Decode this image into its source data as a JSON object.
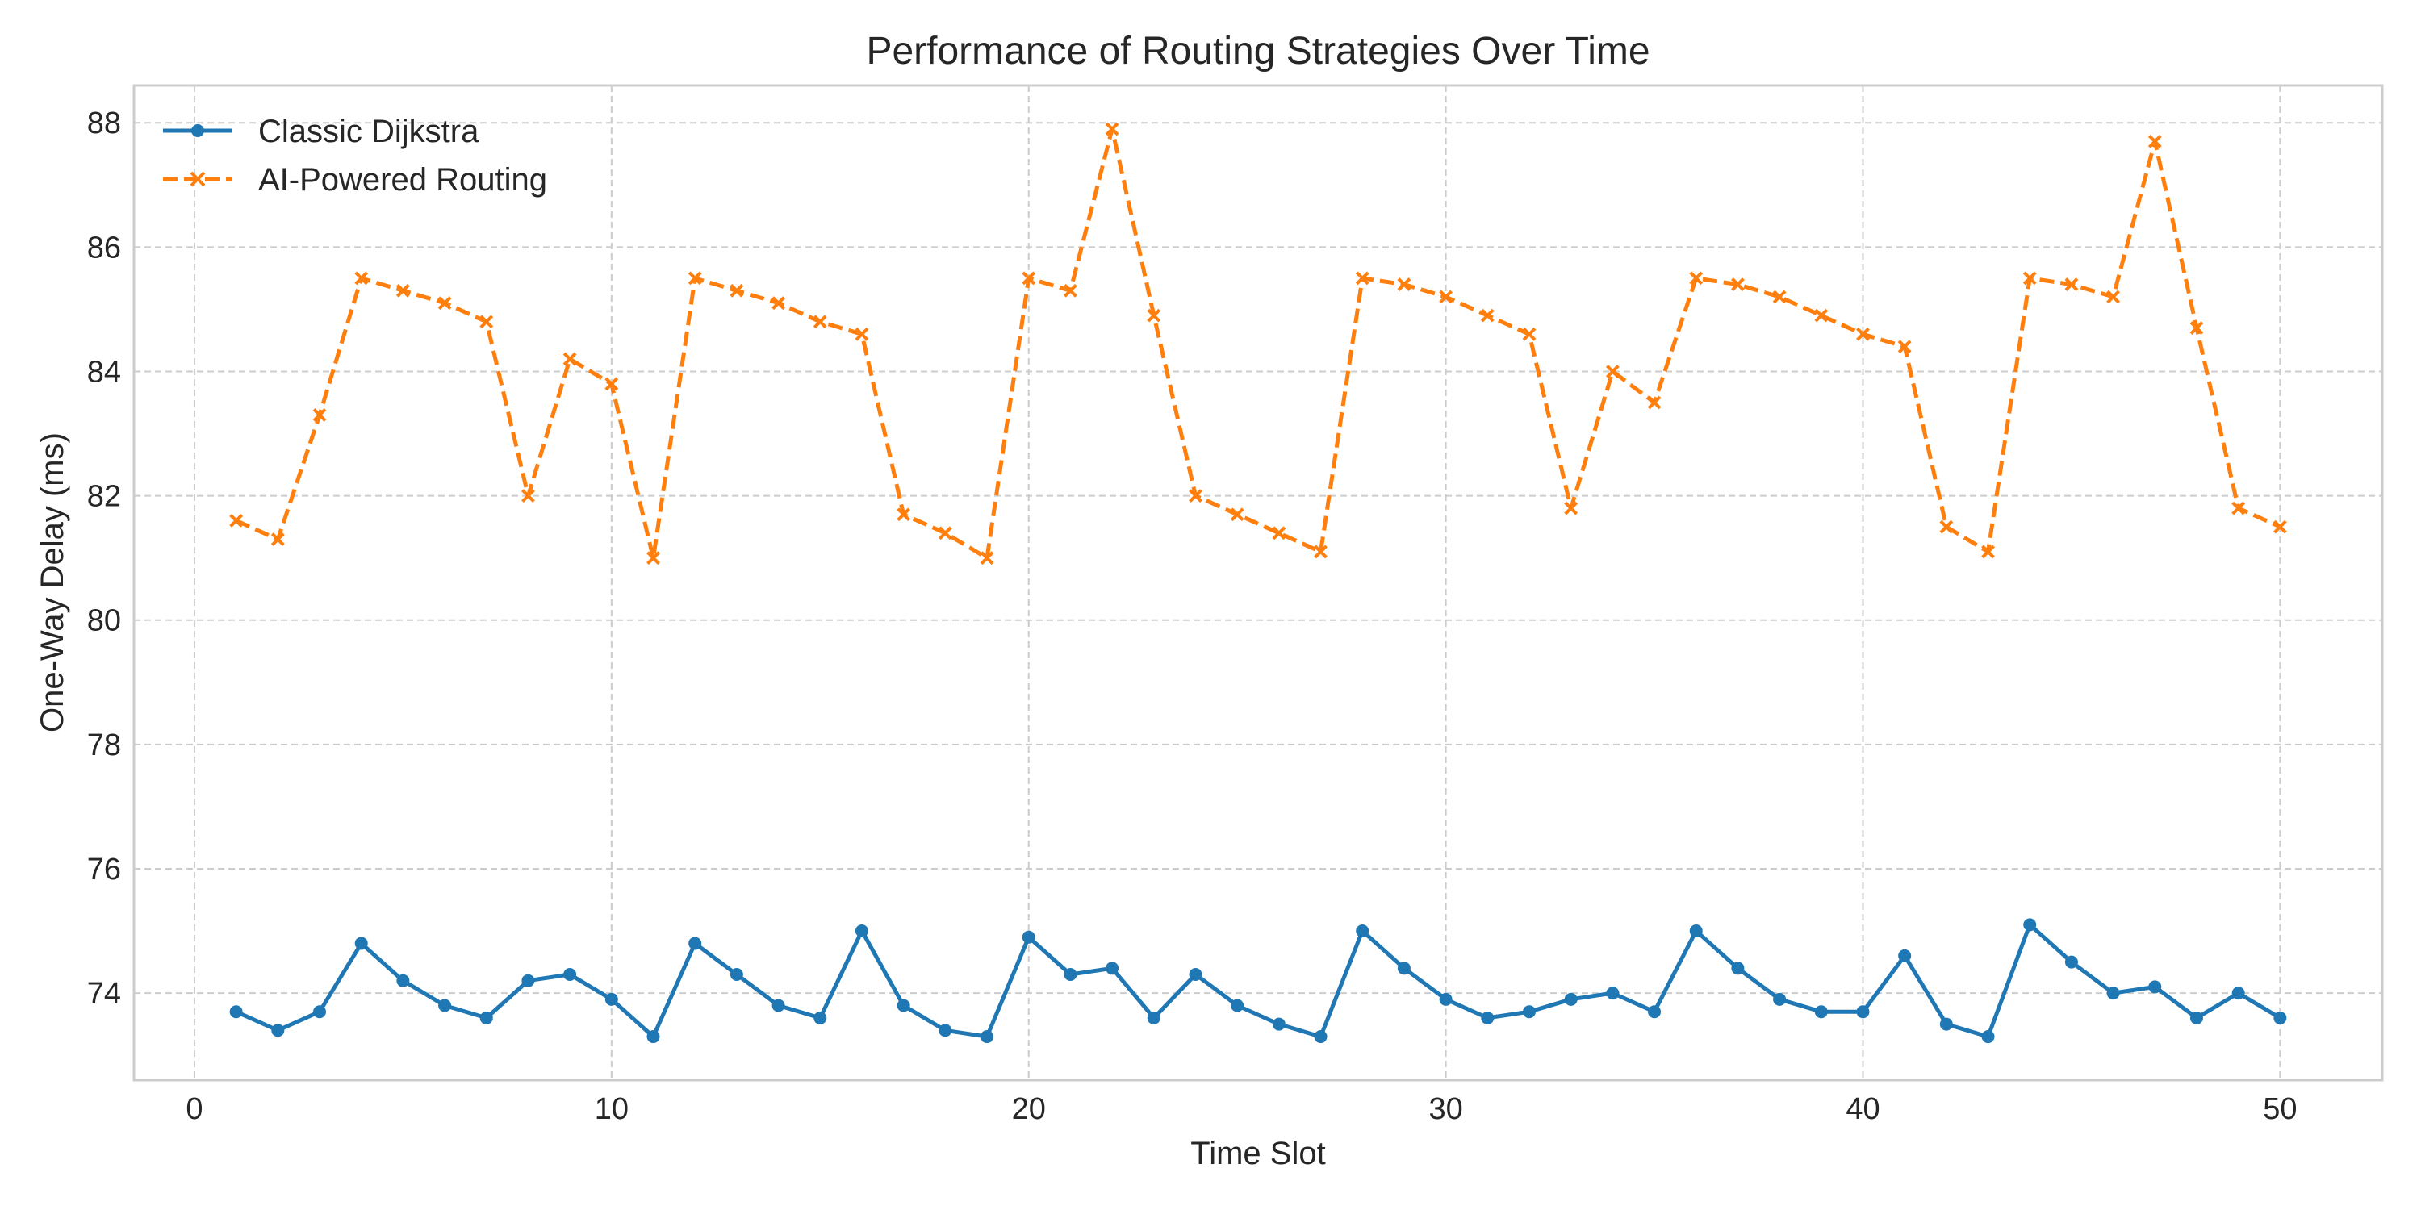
{
  "chart_data": {
    "type": "line",
    "title": "Performance of Routing Strategies Over Time",
    "xlabel": "Time Slot",
    "ylabel": "One-Way Delay (ms)",
    "xlim": [
      -1.45,
      52.45
    ],
    "ylim": [
      72.6,
      88.6
    ],
    "xticks": [
      0,
      10,
      20,
      30,
      40,
      50
    ],
    "yticks": [
      74,
      76,
      78,
      80,
      82,
      84,
      86,
      88
    ],
    "grid": true,
    "legend_position": "top-left",
    "x": [
      1,
      2,
      3,
      4,
      5,
      6,
      7,
      8,
      9,
      10,
      11,
      12,
      13,
      14,
      15,
      16,
      17,
      18,
      19,
      20,
      21,
      22,
      23,
      24,
      25,
      26,
      27,
      28,
      29,
      30,
      31,
      32,
      33,
      34,
      35,
      36,
      37,
      38,
      39,
      40,
      41,
      42,
      43,
      44,
      45,
      46,
      47,
      48,
      49,
      50
    ],
    "series": [
      {
        "name": "Classic Dijkstra",
        "color": "#1f77b4",
        "style": "solid",
        "marker": "circle",
        "values": [
          73.7,
          73.4,
          73.7,
          74.8,
          74.2,
          73.8,
          73.6,
          74.2,
          74.3,
          73.9,
          73.3,
          74.8,
          74.3,
          73.8,
          73.6,
          75.0,
          73.8,
          73.4,
          73.3,
          74.9,
          74.3,
          74.4,
          73.6,
          74.3,
          73.8,
          73.5,
          73.3,
          75.0,
          74.4,
          73.9,
          73.6,
          73.7,
          73.9,
          74.0,
          73.7,
          75.0,
          74.4,
          73.9,
          73.7,
          73.7,
          74.6,
          73.5,
          73.3,
          75.1,
          74.5,
          74.0,
          74.1,
          73.6,
          74.0,
          73.6
        ]
      },
      {
        "name": "AI-Powered Routing",
        "color": "#ff7f0e",
        "style": "dashed",
        "marker": "x",
        "values": [
          81.6,
          81.3,
          83.3,
          85.5,
          85.3,
          85.1,
          84.8,
          82.0,
          84.2,
          83.8,
          81.0,
          85.5,
          85.3,
          85.1,
          84.8,
          84.6,
          81.7,
          81.4,
          81.0,
          85.5,
          85.3,
          87.9,
          84.9,
          82.0,
          81.7,
          81.4,
          81.1,
          85.5,
          85.4,
          85.2,
          84.9,
          84.6,
          81.8,
          84.0,
          83.5,
          85.5,
          85.4,
          85.2,
          84.9,
          84.6,
          84.4,
          81.5,
          81.1,
          85.5,
          85.4,
          85.2,
          87.7,
          84.7,
          81.8,
          81.5
        ]
      }
    ]
  }
}
